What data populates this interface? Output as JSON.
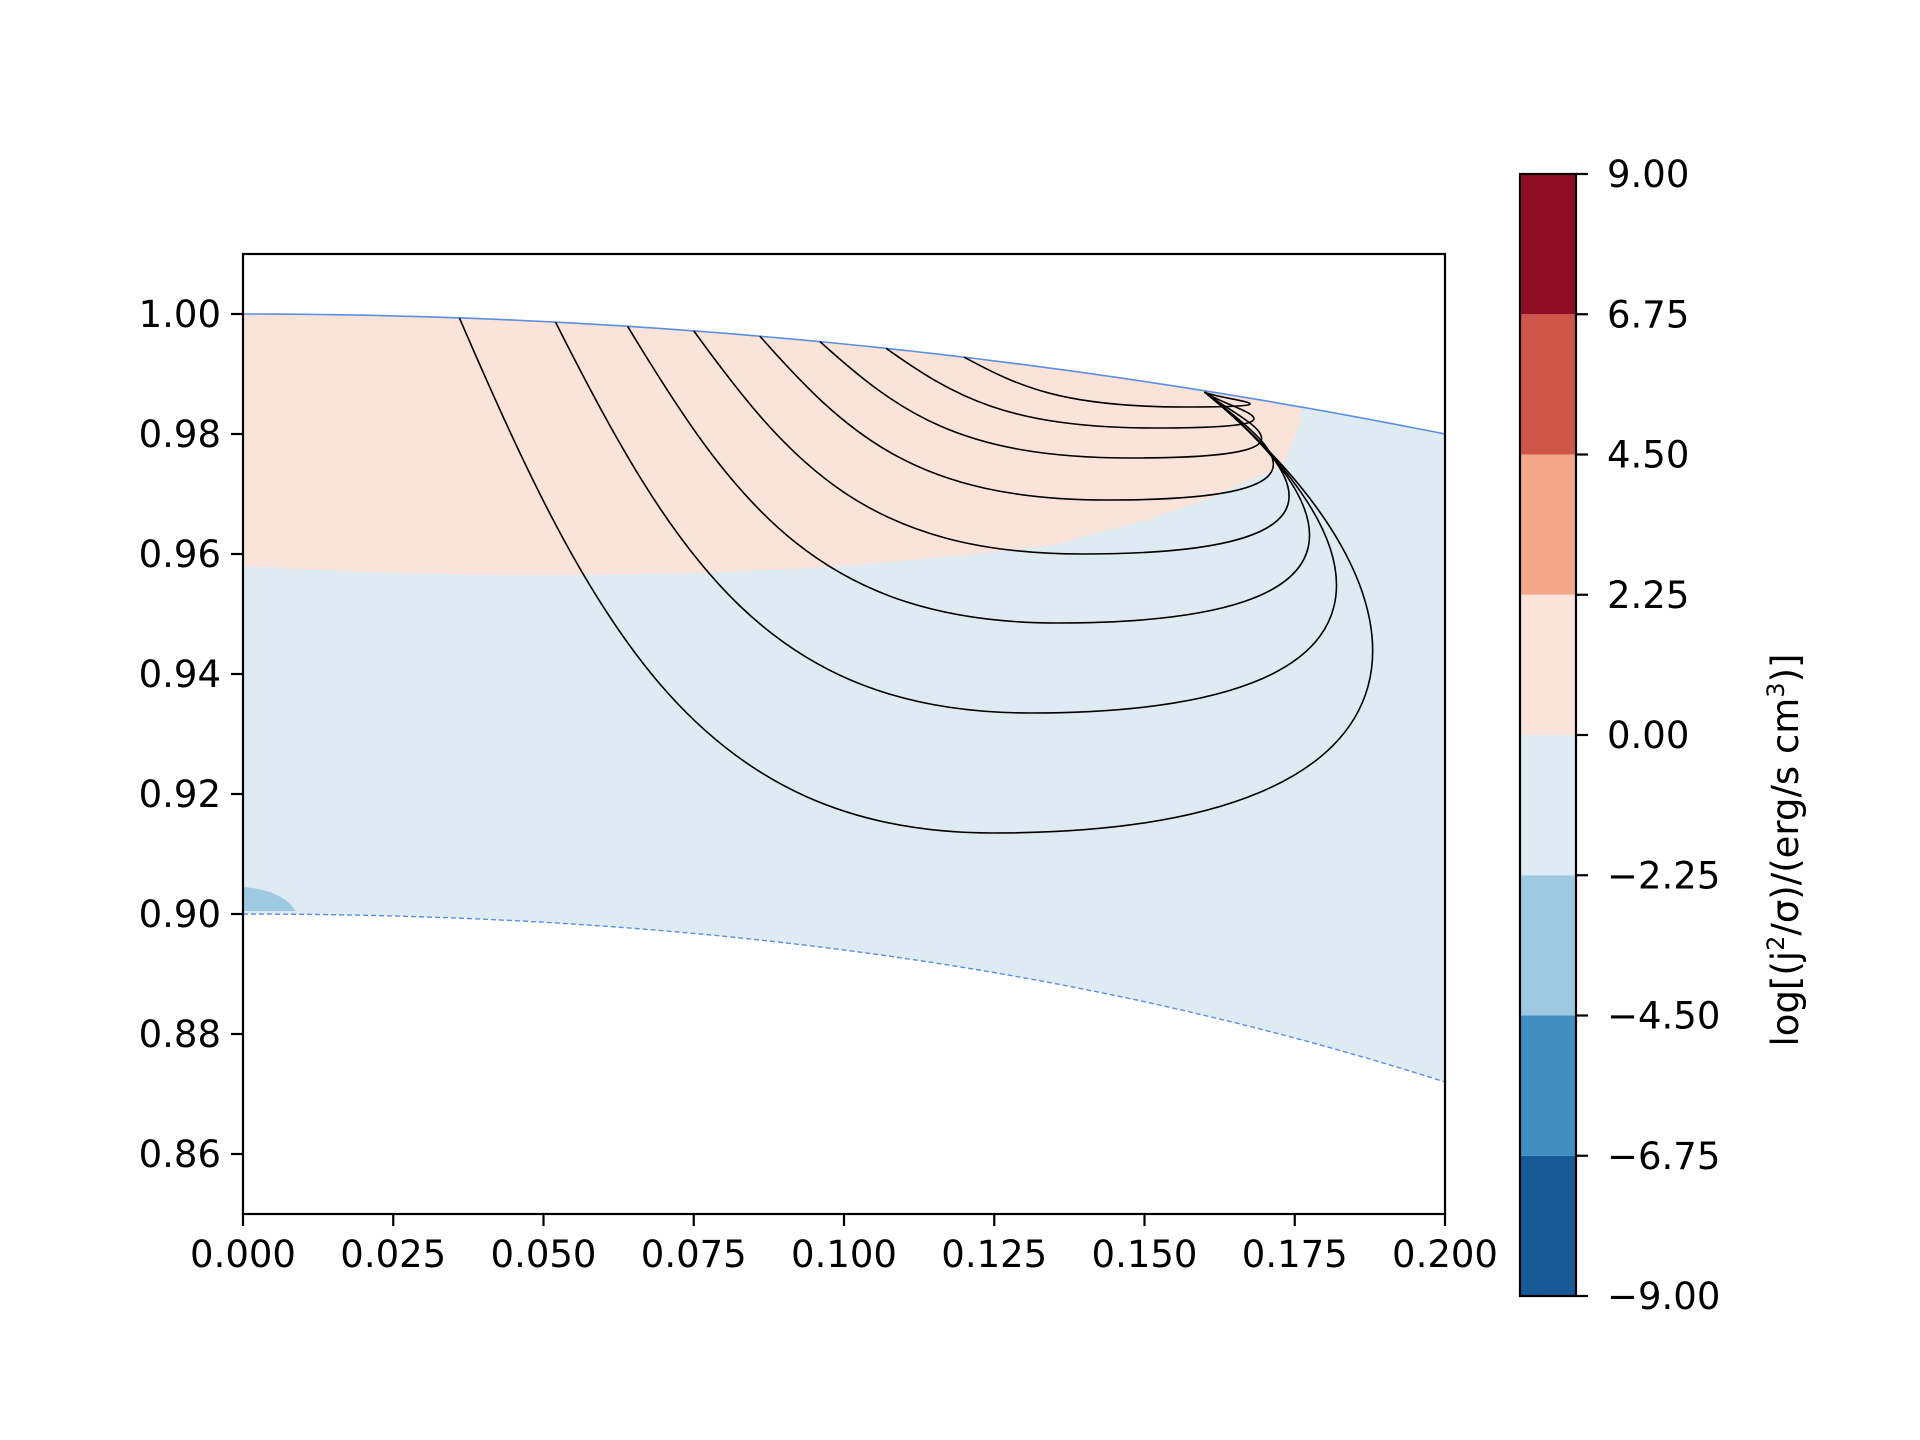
{
  "chart_data": {
    "type": "contour",
    "title": "",
    "xlabel": "",
    "ylabel": "",
    "xlim": [
      0.0,
      0.2
    ],
    "ylim": [
      0.85,
      1.01
    ],
    "x_ticks": [
      "0.000",
      "0.025",
      "0.050",
      "0.075",
      "0.100",
      "0.125",
      "0.150",
      "0.175",
      "0.200"
    ],
    "y_ticks": [
      "0.86",
      "0.88",
      "0.90",
      "0.92",
      "0.94",
      "0.96",
      "0.98",
      "1.00"
    ],
    "outer_boundary": [
      [
        0.0,
        1.0
      ],
      [
        0.05,
        0.99875
      ],
      [
        0.1,
        0.995
      ],
      [
        0.15,
        0.98875
      ],
      [
        0.2,
        0.98
      ]
    ],
    "inner_boundary": [
      [
        0.0,
        0.9
      ],
      [
        0.05,
        0.89875
      ],
      [
        0.1,
        0.89375
      ],
      [
        0.15,
        0.885
      ],
      [
        0.2,
        0.8775
      ]
    ],
    "filled_regions": [
      {
        "level": "0.00 to 2.25",
        "color": "#fae4da",
        "boundary": [
          [
            0.0,
            1.0
          ],
          [
            0.16,
            0.987
          ],
          [
            0.176,
            0.982
          ],
          [
            0.173,
            0.9745
          ],
          [
            0.168,
            0.9725
          ],
          [
            0.16,
            0.969
          ],
          [
            0.15,
            0.9655
          ],
          [
            0.14,
            0.963
          ],
          [
            0.135,
            0.9615
          ],
          [
            0.12,
            0.9598
          ],
          [
            0.1,
            0.958
          ],
          [
            0.08,
            0.957
          ],
          [
            0.06,
            0.9565
          ],
          [
            0.04,
            0.9565
          ],
          [
            0.02,
            0.957
          ],
          [
            0.0,
            0.958
          ]
        ]
      },
      {
        "level": "-2.25 to 0.00",
        "color": "#deebf3",
        "boundary": "between outer and inner boundary, outside the 0.00-2.25 region"
      },
      {
        "level": "-4.50 to -2.25",
        "color": "#9ecae1",
        "boundary": [
          [
            0.0,
            0.9005
          ],
          [
            0.0088,
            0.9005
          ],
          [
            0.0065,
            0.9025
          ],
          [
            0.004,
            0.904
          ],
          [
            0.0,
            0.9045
          ]
        ]
      }
    ],
    "field_lines": {
      "footpoint": [
        0.16,
        0.987
      ],
      "start_x": [
        0.036,
        0.052,
        0.064,
        0.075,
        0.086,
        0.096,
        0.107,
        0.12
      ],
      "min_y": [
        0.9135,
        0.9335,
        0.9485,
        0.96,
        0.969,
        0.976,
        0.981,
        0.9845
      ]
    },
    "colorbar": {
      "label": "log[(j²/σ)/(erg/s cm³)]",
      "label_prefix": "log[(j",
      "label_sup1": "2",
      "label_mid": "/σ)/(erg/s cm",
      "label_sup2": "3",
      "label_suffix": ")]",
      "ticks": [
        "9.00",
        "6.75",
        "4.50",
        "2.25",
        "0.00",
        "−2.25",
        "−4.50",
        "−6.75",
        "−9.00"
      ],
      "range": [
        -9.0,
        9.0
      ],
      "bands": [
        {
          "from": -9.0,
          "to": -6.75,
          "color": "#185a98"
        },
        {
          "from": -6.75,
          "to": -4.5,
          "color": "#418fc1"
        },
        {
          "from": -4.5,
          "to": -2.25,
          "color": "#9ecae1"
        },
        {
          "from": -2.25,
          "to": 0.0,
          "color": "#deebf3"
        },
        {
          "from": 0.0,
          "to": 2.25,
          "color": "#fae4da"
        },
        {
          "from": 2.25,
          "to": 4.5,
          "color": "#f4a889"
        },
        {
          "from": 4.5,
          "to": 6.75,
          "color": "#cf5549"
        },
        {
          "from": 6.75,
          "to": 9.0,
          "color": "#8f0e26"
        }
      ]
    }
  }
}
